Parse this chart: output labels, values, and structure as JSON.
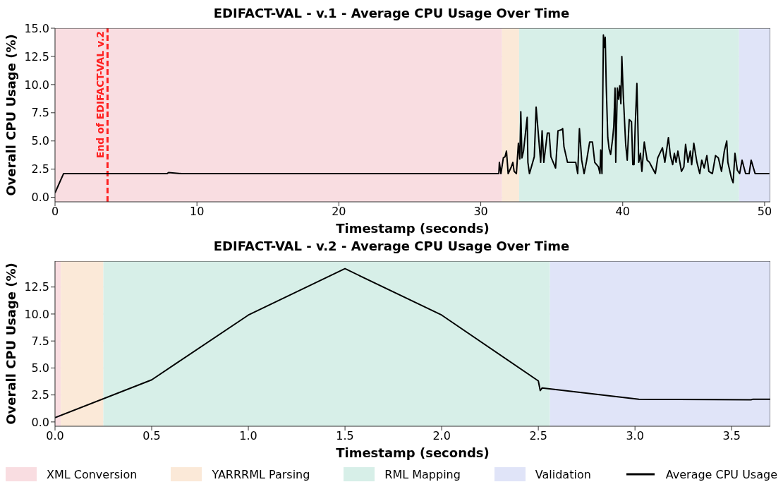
{
  "chart_data": [
    {
      "type": "line",
      "title": "EDIFACT-VAL - v.1 - Average CPU Usage Over Time",
      "xlabel": "Timestamp (seconds)",
      "ylabel": "Overall CPU Usage (%)",
      "xlim": [
        0,
        50.4
      ],
      "xticks": [
        0,
        10,
        20,
        30,
        40,
        50
      ],
      "ylim": [
        -0.4,
        15.0
      ],
      "yticks": [
        {
          "value": 0,
          "label": "0.0"
        },
        {
          "value": 2.5,
          "label": "2.5"
        },
        {
          "value": 5,
          "label": "5.0"
        },
        {
          "value": 7.5,
          "label": "7.5"
        },
        {
          "value": 10,
          "label": "10.0"
        },
        {
          "value": 12.5,
          "label": "12.5"
        },
        {
          "value": 15,
          "label": "15.0"
        }
      ],
      "grid": true,
      "line_style": "solid",
      "marker": "none",
      "bands": [
        {
          "axis": "x",
          "from": 0,
          "to": 31.5,
          "color": "#f9dde1"
        },
        {
          "axis": "x",
          "from": 31.5,
          "to": 32.7,
          "color": "#fbe9d8"
        },
        {
          "axis": "x",
          "from": 32.7,
          "to": 48.2,
          "color": "#d7efe8"
        },
        {
          "axis": "x",
          "from": 48.2,
          "to": 50.4,
          "color": "#e0e4f8"
        }
      ],
      "ref_lines": [
        {
          "axis": "x",
          "value": 3.7,
          "label": "End of EDIFACT-VAL v.2",
          "color": "#ff2020",
          "line_style": "dashed"
        }
      ],
      "series": [
        {
          "color": "#000000",
          "x": [
            0,
            0.6,
            7.9,
            8.0,
            8.9,
            31.27,
            31.31,
            31.42,
            31.59,
            31.71,
            31.81,
            31.93,
            32.15,
            32.26,
            32.35,
            32.51,
            32.65,
            32.75,
            32.82,
            32.9,
            33.01,
            33.27,
            33.32,
            33.43,
            33.77,
            33.9,
            34.22,
            34.32,
            34.44,
            34.69,
            34.82,
            34.94,
            35.27,
            35.44,
            35.69,
            35.77,
            35.86,
            36.11,
            36.45,
            36.69,
            36.83,
            36.95,
            37.11,
            37.28,
            37.45,
            37.67,
            37.87,
            38.03,
            38.29,
            38.4,
            38.45,
            38.54,
            38.64,
            38.71,
            38.77,
            38.84,
            38.95,
            39.04,
            39.15,
            39.29,
            39.37,
            39.46,
            39.51,
            39.62,
            39.71,
            39.79,
            39.87,
            39.94,
            40.04,
            40.21,
            40.32,
            40.46,
            40.62,
            40.71,
            40.8,
            40.88,
            41.0,
            41.13,
            41.25,
            41.35,
            41.52,
            41.72,
            41.89,
            42.05,
            42.3,
            42.47,
            42.8,
            42.97,
            43.22,
            43.36,
            43.52,
            43.64,
            43.76,
            43.89,
            44.14,
            44.31,
            44.43,
            44.6,
            44.76,
            44.86,
            45.01,
            45.23,
            45.43,
            45.57,
            45.74,
            45.93,
            46.07,
            46.32,
            46.54,
            46.74,
            46.96,
            47.16,
            47.33,
            47.41,
            47.66,
            47.78,
            47.91,
            48.08,
            48.24,
            48.41,
            48.66,
            48.91,
            49.05,
            49.33,
            50.33
          ],
          "values": [
            0.4,
            2.1,
            2.1,
            2.2,
            2.1,
            2.1,
            3.1,
            2.1,
            3.5,
            3.6,
            4.1,
            2.1,
            2.7,
            3.1,
            2.3,
            2.1,
            4.8,
            3.4,
            7.6,
            3.5,
            4.1,
            7.1,
            3.1,
            2.1,
            3.6,
            8.0,
            3.1,
            5.9,
            3.1,
            5.7,
            5.7,
            3.6,
            2.6,
            5.9,
            6.0,
            6.1,
            4.5,
            3.1,
            3.1,
            3.1,
            2.1,
            6.1,
            3.3,
            2.1,
            3.2,
            4.9,
            4.9,
            3.1,
            2.7,
            2.1,
            4.2,
            2.1,
            14.4,
            13.3,
            14.2,
            9.9,
            5.3,
            4.3,
            3.8,
            5.2,
            6.3,
            9.7,
            3.1,
            9.7,
            8.7,
            9.9,
            8.3,
            12.5,
            9.1,
            4.7,
            3.3,
            6.9,
            6.7,
            2.9,
            2.9,
            6.3,
            10.1,
            3.1,
            3.9,
            2.3,
            4.9,
            3.3,
            3.1,
            2.7,
            2.1,
            3.5,
            4.4,
            3.1,
            5.3,
            3.7,
            2.9,
            3.9,
            3.1,
            4.1,
            2.3,
            2.7,
            4.7,
            3.1,
            4.1,
            2.9,
            4.8,
            3.1,
            2.1,
            3.3,
            2.6,
            3.7,
            2.3,
            2.1,
            3.7,
            3.5,
            2.3,
            4.1,
            5.0,
            3.1,
            1.7,
            1.3,
            3.9,
            2.4,
            2.1,
            3.3,
            2.1,
            2.1,
            3.3,
            2.1,
            2.1
          ]
        }
      ]
    },
    {
      "type": "line",
      "title": "EDIFACT-VAL - v.2 - Average CPU Usage Over Time",
      "xlabel": "Timestamp (seconds)",
      "ylabel": "Overall CPU Usage (%)",
      "xlim": [
        0,
        3.7
      ],
      "xticks": [
        {
          "value": 0,
          "label": "0.0"
        },
        0.5,
        {
          "value": 1,
          "label": "1.0"
        },
        1.5,
        {
          "value": 2,
          "label": "2.0"
        },
        2.5,
        {
          "value": 3,
          "label": "3.0"
        },
        3.5
      ],
      "ylim": [
        -0.4,
        14.9
      ],
      "yticks": [
        {
          "value": 0,
          "label": "0.0"
        },
        {
          "value": 2.5,
          "label": "2.5"
        },
        {
          "value": 5,
          "label": "5.0"
        },
        {
          "value": 7.5,
          "label": "7.5"
        },
        {
          "value": 10,
          "label": "10.0"
        },
        {
          "value": 12.5,
          "label": "12.5"
        }
      ],
      "grid": true,
      "line_style": "solid",
      "marker": "none",
      "legend": "bottom",
      "bands": [
        {
          "axis": "x",
          "from": 0,
          "to": 0.03,
          "label": "XML Conversion",
          "color": "#f9dde1"
        },
        {
          "axis": "x",
          "from": 0.03,
          "to": 0.25,
          "label": "YARRRML Parsing",
          "color": "#fbe9d8"
        },
        {
          "axis": "x",
          "from": 0.25,
          "to": 2.56,
          "label": "RML Mapping",
          "color": "#d7efe8"
        },
        {
          "axis": "x",
          "from": 2.56,
          "to": 3.7,
          "label": "Validation",
          "color": "#e0e4f8"
        }
      ],
      "series": [
        {
          "name": "Average CPU Usage",
          "color": "#000000",
          "x": [
            0,
            0.5,
            1.0,
            1.5,
            2.0,
            2.5,
            2.51,
            2.52,
            3.02,
            3.6,
            3.61,
            3.7
          ],
          "values": [
            0.4,
            3.9,
            9.9,
            14.2,
            9.9,
            3.8,
            2.9,
            3.15,
            2.1,
            2.05,
            2.1,
            2.1
          ]
        }
      ]
    }
  ]
}
